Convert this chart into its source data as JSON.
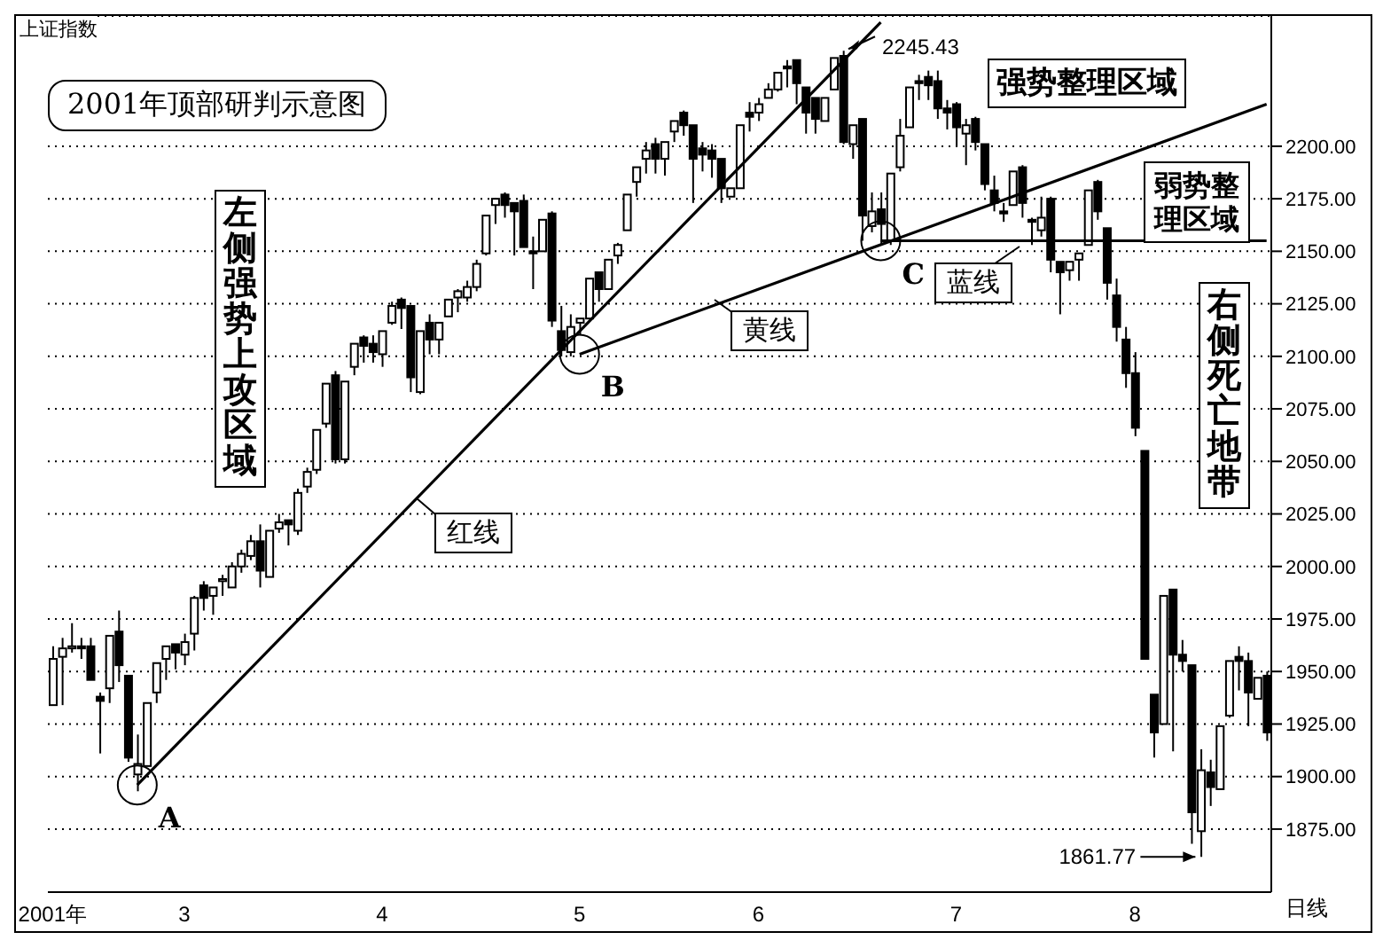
{
  "chart_data": {
    "type": "candlestick",
    "title": "2001年顶部研判示意图",
    "subtitle": "上证指数",
    "categories": [
      "2001年",
      null,
      null,
      null,
      null,
      null,
      null,
      null,
      null,
      null,
      null,
      null,
      null,
      null,
      "3",
      null,
      null,
      null,
      null,
      null,
      null,
      null,
      null,
      null,
      null,
      null,
      null,
      null,
      null,
      null,
      null,
      null,
      null,
      null,
      null,
      "4",
      null,
      null,
      null,
      null,
      null,
      null,
      null,
      null,
      null,
      null,
      null,
      null,
      null,
      null,
      null,
      null,
      null,
      null,
      null,
      null,
      "5",
      null,
      null,
      null,
      null,
      null,
      null,
      null,
      null,
      null,
      null,
      null,
      null,
      null,
      null,
      null,
      null,
      null,
      null,
      "6",
      null,
      null,
      null,
      null,
      null,
      null,
      null,
      null,
      null,
      null,
      null,
      null,
      null,
      null,
      null,
      null,
      null,
      null,
      null,
      null,
      "7",
      null,
      null,
      null,
      null,
      null,
      null,
      null,
      null,
      null,
      null,
      null,
      null,
      null,
      null,
      null,
      null,
      null,
      null,
      "8",
      null,
      null,
      null,
      null,
      null,
      null,
      null,
      null,
      null,
      null,
      null,
      null,
      null,
      null
    ],
    "ohlc": [
      [
        1934,
        1962,
        1934,
        1956
      ],
      [
        1957,
        1966,
        1934,
        1961
      ],
      [
        1961,
        1973,
        1959,
        1962
      ],
      [
        1962,
        1966,
        1956,
        1961
      ],
      [
        1962,
        1966,
        1946,
        1946
      ],
      [
        1938,
        1940,
        1911,
        1936
      ],
      [
        1942,
        1967,
        1935,
        1967
      ],
      [
        1969,
        1979,
        1945,
        1953
      ],
      [
        1948,
        1948,
        1907,
        1909
      ],
      [
        1901,
        1920,
        1893,
        1906
      ],
      [
        1905,
        1935,
        1905,
        1935
      ],
      [
        1940,
        1954,
        1935,
        1954
      ],
      [
        1956,
        1962,
        1946,
        1962
      ],
      [
        1963,
        1963,
        1951,
        1959
      ],
      [
        1958,
        1968,
        1953,
        1964
      ],
      [
        1968,
        1986,
        1960,
        1985
      ],
      [
        1991,
        1993,
        1979,
        1985
      ],
      [
        1986,
        1990,
        1977,
        1990
      ],
      [
        1993,
        1996,
        1986,
        1994
      ],
      [
        1990,
        2002,
        1990,
        2000
      ],
      [
        2000,
        2008,
        1997,
        2006
      ],
      [
        2005,
        2015,
        2003,
        2012
      ],
      [
        2012,
        2020,
        1990,
        1998
      ],
      [
        1995,
        2017,
        1995,
        2017
      ],
      [
        2018,
        2025,
        2016,
        2021
      ],
      [
        2022,
        2022,
        2010,
        2020
      ],
      [
        2017,
        2037,
        2015,
        2035
      ],
      [
        2038,
        2047,
        2035,
        2045
      ],
      [
        2046,
        2065,
        2044,
        2065
      ],
      [
        2068,
        2087,
        2066,
        2087
      ],
      [
        2091,
        2093,
        2049,
        2051
      ],
      [
        2051,
        2088,
        2049,
        2088
      ],
      [
        2095,
        2106,
        2091,
        2106
      ],
      [
        2109,
        2110,
        2097,
        2105
      ],
      [
        2106,
        2110,
        2097,
        2102
      ],
      [
        2101,
        2112,
        2095,
        2112
      ],
      [
        2116,
        2126,
        2115,
        2124
      ],
      [
        2127,
        2128,
        2113,
        2123
      ],
      [
        2124,
        2124,
        2083,
        2090
      ],
      [
        2083,
        2112,
        2082,
        2112
      ],
      [
        2116,
        2120,
        2101,
        2108
      ],
      [
        2108,
        2116,
        2101,
        2116
      ],
      [
        2119,
        2127,
        2119,
        2127
      ],
      [
        2128,
        2132,
        2121,
        2131
      ],
      [
        2128,
        2136,
        2126,
        2133
      ],
      [
        2133,
        2146,
        2131,
        2144
      ],
      [
        2149,
        2167,
        2148,
        2167
      ],
      [
        2172,
        2175,
        2163,
        2175
      ],
      [
        2177,
        2178,
        2166,
        2172
      ],
      [
        2173,
        2173,
        2148,
        2169
      ],
      [
        2174,
        2177,
        2152,
        2152
      ],
      [
        2150,
        2157,
        2132,
        2149
      ],
      [
        2150,
        2165,
        2150,
        2165
      ],
      [
        2168,
        2169,
        2114,
        2117
      ],
      [
        2112,
        2124,
        2100,
        2103
      ],
      [
        2102,
        2120,
        2100,
        2114
      ],
      [
        2116,
        2118,
        2110,
        2118
      ],
      [
        2118,
        2137,
        2118,
        2137
      ],
      [
        2140,
        2140,
        2126,
        2132
      ],
      [
        2132,
        2146,
        2132,
        2146
      ],
      [
        2148,
        2154,
        2144,
        2153
      ],
      [
        2160,
        2177,
        2160,
        2177
      ],
      [
        2183,
        2190,
        2176,
        2190
      ],
      [
        2194,
        2202,
        2187,
        2198
      ],
      [
        2201,
        2204,
        2187,
        2194
      ],
      [
        2194,
        2202,
        2186,
        2202
      ],
      [
        2207,
        2212,
        2202,
        2212
      ],
      [
        2216,
        2217,
        2205,
        2210
      ],
      [
        2210,
        2210,
        2173,
        2194
      ],
      [
        2199,
        2202,
        2188,
        2196
      ],
      [
        2198,
        2201,
        2185,
        2194
      ],
      [
        2194,
        2194,
        2173,
        2180
      ],
      [
        2176,
        2180,
        2176,
        2180
      ],
      [
        2180,
        2210,
        2180,
        2210
      ],
      [
        2216,
        2221,
        2207,
        2214
      ],
      [
        2216,
        2223,
        2212,
        2220
      ],
      [
        2223,
        2230,
        2223,
        2227
      ],
      [
        2227,
        2235,
        2226,
        2235
      ],
      [
        2238,
        2241,
        2228,
        2237
      ],
      [
        2241,
        2241,
        2220,
        2230
      ],
      [
        2228,
        2228,
        2206,
        2216
      ],
      [
        2223,
        2223,
        2206,
        2213
      ],
      [
        2212,
        2223,
        2212,
        2223
      ],
      [
        2227,
        2242,
        2227,
        2242
      ],
      [
        2243,
        2245.43,
        2201,
        2202
      ],
      [
        2201,
        2210,
        2194,
        2210
      ],
      [
        2213,
        2213,
        2155,
        2167
      ],
      [
        2162,
        2178,
        2159,
        2169
      ],
      [
        2170,
        2178,
        2153,
        2163
      ],
      [
        2155,
        2187,
        2153,
        2187
      ],
      [
        2190,
        2213,
        2188,
        2205
      ],
      [
        2209,
        2228,
        2209,
        2228
      ],
      [
        2231,
        2234,
        2222,
        2230
      ],
      [
        2233,
        2236,
        2222,
        2229
      ],
      [
        2231,
        2236,
        2213,
        2218
      ],
      [
        2218,
        2222,
        2208,
        2216
      ],
      [
        2220,
        2221,
        2200,
        2209
      ],
      [
        2206,
        2213,
        2191,
        2210
      ],
      [
        2213,
        2214,
        2198,
        2202
      ],
      [
        2201,
        2201,
        2179,
        2182
      ],
      [
        2179,
        2186,
        2169,
        2173
      ],
      [
        2169,
        2173,
        2164,
        2168
      ],
      [
        2172,
        2188,
        2172,
        2188
      ],
      [
        2190,
        2191,
        2166,
        2173
      ],
      [
        2165,
        2166,
        2153,
        2164
      ],
      [
        2160,
        2176,
        2157,
        2166
      ],
      [
        2175,
        2176,
        2140,
        2146
      ],
      [
        2145,
        2145,
        2120,
        2140
      ],
      [
        2141,
        2145,
        2136,
        2145
      ],
      [
        2146,
        2149,
        2136,
        2149
      ],
      [
        2153,
        2179,
        2153,
        2179
      ],
      [
        2183,
        2184,
        2165,
        2169
      ],
      [
        2161,
        2161,
        2127,
        2135
      ],
      [
        2129,
        2137,
        2107,
        2114
      ],
      [
        2108,
        2114,
        2085,
        2092
      ],
      [
        2092,
        2102,
        2062,
        2066
      ],
      [
        2055,
        2055,
        1956,
        1956
      ],
      [
        1939,
        1939,
        1909,
        1921
      ],
      [
        1925,
        1986,
        1925,
        1986
      ],
      [
        1989,
        1989,
        1912,
        1958
      ],
      [
        1958,
        1965,
        1950,
        1955
      ],
      [
        1953,
        1953,
        1868,
        1883
      ],
      [
        1874,
        1913,
        1861.77,
        1903
      ],
      [
        1902,
        1908,
        1886,
        1895
      ],
      [
        1894,
        1924,
        1894,
        1924
      ],
      [
        1929,
        1955,
        1928,
        1955
      ],
      [
        1957,
        1962,
        1941,
        1955
      ],
      [
        1955,
        1959,
        1924,
        1940
      ],
      [
        1937,
        1947,
        1937,
        1947
      ],
      [
        1948,
        1950,
        1917,
        1921
      ]
    ],
    "series": [
      {
        "type": "line",
        "color": "#000000",
        "values": [
          null,
          null,
          null,
          null,
          null,
          null,
          null,
          null,
          null,
          1896,
          null,
          null,
          null,
          null,
          null,
          null,
          null,
          null,
          null,
          null,
          null,
          null,
          null,
          null,
          null,
          null,
          null,
          null,
          null,
          null,
          null,
          null,
          null,
          null,
          null,
          null,
          null,
          null,
          null,
          null,
          null,
          null,
          null,
          null,
          null,
          null,
          null,
          null,
          null,
          null,
          null,
          null,
          null,
          null,
          null,
          null,
          null,
          null,
          null,
          null,
          null,
          null,
          null,
          null,
          null,
          null,
          null,
          null,
          null,
          null,
          null,
          null,
          null,
          null,
          null,
          null,
          null,
          null,
          null,
          null,
          null,
          null,
          null,
          null,
          null,
          null,
          null,
          null,
          2259,
          null,
          null,
          null,
          null,
          null,
          null,
          null,
          null,
          null,
          null,
          null,
          null,
          null,
          null,
          null,
          null,
          null,
          null,
          null,
          null,
          null,
          null,
          null,
          null,
          null,
          null,
          null,
          null,
          null,
          null,
          null,
          null,
          null,
          null,
          null,
          null,
          null,
          null,
          null,
          null,
          null
        ]
      },
      {
        "type": "line",
        "color": "#000000",
        "values": [
          null,
          null,
          null,
          null,
          null,
          null,
          null,
          null,
          null,
          null,
          null,
          null,
          null,
          null,
          null,
          null,
          null,
          null,
          null,
          null,
          null,
          null,
          null,
          null,
          null,
          null,
          null,
          null,
          null,
          null,
          null,
          null,
          null,
          null,
          null,
          null,
          null,
          null,
          null,
          null,
          null,
          null,
          null,
          null,
          null,
          null,
          null,
          null,
          null,
          null,
          null,
          null,
          null,
          null,
          null,
          null,
          2101,
          null,
          null,
          null,
          null,
          null,
          null,
          null,
          null,
          null,
          null,
          null,
          null,
          null,
          null,
          null,
          null,
          null,
          null,
          null,
          null,
          null,
          null,
          null,
          null,
          null,
          null,
          null,
          null,
          null,
          null,
          null,
          null,
          null,
          null,
          null,
          null,
          null,
          null,
          null,
          null,
          null,
          null,
          null,
          null,
          null,
          null,
          null,
          null,
          null,
          null,
          null,
          null,
          null,
          null,
          null,
          null,
          null,
          null,
          null,
          null,
          null,
          null,
          null,
          null,
          null,
          null,
          null,
          null,
          null,
          null,
          null,
          null,
          2220
        ]
      },
      {
        "type": "line",
        "color": "#000000",
        "values": [
          null,
          null,
          null,
          null,
          null,
          null,
          null,
          null,
          null,
          null,
          null,
          null,
          null,
          null,
          null,
          null,
          null,
          null,
          null,
          null,
          null,
          null,
          null,
          null,
          null,
          null,
          null,
          null,
          null,
          null,
          null,
          null,
          null,
          null,
          null,
          null,
          null,
          null,
          null,
          null,
          null,
          null,
          null,
          null,
          null,
          null,
          null,
          null,
          null,
          null,
          null,
          null,
          null,
          null,
          null,
          null,
          null,
          null,
          null,
          null,
          null,
          null,
          null,
          null,
          null,
          null,
          null,
          null,
          null,
          null,
          null,
          null,
          null,
          null,
          null,
          null,
          null,
          null,
          null,
          null,
          null,
          null,
          null,
          null,
          null,
          null,
          null,
          null,
          2155,
          null,
          null,
          null,
          null,
          null,
          null,
          null,
          null,
          null,
          null,
          null,
          null,
          null,
          null,
          null,
          null,
          null,
          null,
          null,
          null,
          null,
          null,
          null,
          null,
          null,
          null,
          null,
          null,
          null,
          null,
          null,
          null,
          null,
          null,
          null,
          null,
          null,
          null,
          null,
          null,
          2155
        ]
      }
    ],
    "ylim": [
      1845,
      2262
    ],
    "yticks": [
      {
        "value": 1875,
        "label": "1875.00"
      },
      {
        "value": 1900,
        "label": "1900.00"
      },
      {
        "value": 1925,
        "label": "1925.00"
      },
      {
        "value": 1950,
        "label": "1950.00"
      },
      {
        "value": 1975,
        "label": "1975.00"
      },
      {
        "value": 2000,
        "label": "2000.00"
      },
      {
        "value": 2025,
        "label": "2025.00"
      },
      {
        "value": 2050,
        "label": "2050.00"
      },
      {
        "value": 2075,
        "label": "2075.00"
      },
      {
        "value": 2100,
        "label": "2100.00"
      },
      {
        "value": 2125,
        "label": "2125.00"
      },
      {
        "value": 2150,
        "label": "2150.00"
      },
      {
        "value": 2175,
        "label": "2175.00"
      },
      {
        "value": 2200,
        "label": "2200.00"
      }
    ],
    "grid": "y",
    "annotations": [
      "A",
      "B",
      "C",
      "2245.43",
      "1861.77",
      "左侧强势上攻区域",
      "强势整理区域",
      "弱势整理区域",
      "右侧死亡地带",
      "日线",
      "红线",
      "黄线",
      "蓝线"
    ]
  }
}
